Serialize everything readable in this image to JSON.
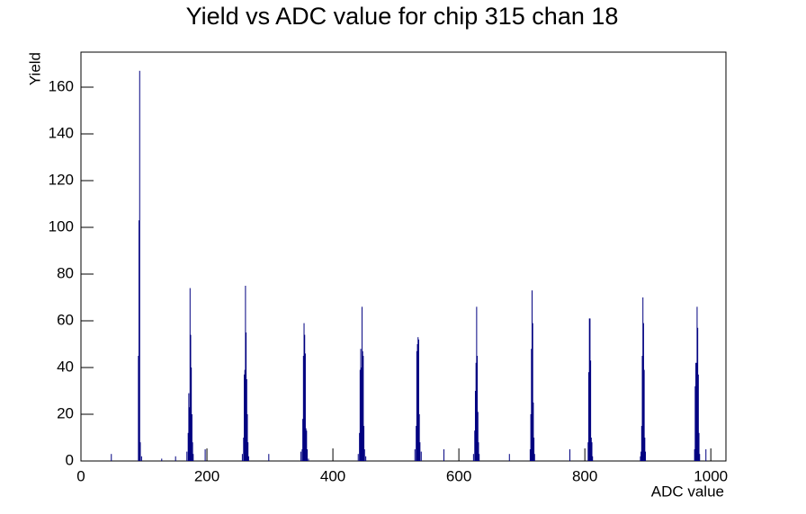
{
  "chart_data": {
    "type": "spike",
    "title": "Yield vs ADC value for chip 315 chan 18",
    "x_label": "ADC value",
    "y_label": "Yield",
    "color": "#000080",
    "xlim": [
      0,
      1024
    ],
    "ylim": [
      0,
      175
    ],
    "xticks": [
      0,
      200,
      400,
      600,
      800,
      1000
    ],
    "yticks": [
      0,
      20,
      40,
      60,
      80,
      100,
      120,
      140,
      160
    ],
    "x": [
      48,
      91,
      92,
      93,
      94,
      96,
      128,
      150,
      168,
      170,
      171,
      172,
      173,
      174,
      175,
      176,
      177,
      178,
      197,
      256,
      258,
      259,
      260,
      261,
      262,
      263,
      264,
      265,
      266,
      298,
      349,
      351,
      352,
      353,
      354,
      355,
      356,
      357,
      358,
      359,
      361,
      440,
      442,
      443,
      444,
      445,
      446,
      447,
      448,
      449,
      450,
      452,
      530,
      532,
      533,
      534,
      535,
      536,
      537,
      538,
      540,
      576,
      623,
      625,
      626,
      627,
      628,
      629,
      630,
      631,
      632,
      680,
      713,
      714,
      715,
      716,
      717,
      718,
      719,
      720,
      776,
      805,
      806,
      807,
      808,
      809,
      810,
      811,
      812,
      888,
      889,
      890,
      891,
      892,
      893,
      894,
      895,
      896,
      974,
      975,
      976,
      977,
      978,
      979,
      980,
      981,
      982,
      992
    ],
    "values": [
      3,
      45,
      103,
      167,
      8,
      2,
      1,
      2,
      4,
      12,
      29,
      23,
      74,
      54,
      40,
      20,
      8,
      3,
      5,
      3,
      10,
      37,
      39,
      75,
      55,
      35,
      20,
      8,
      2,
      3,
      4,
      5,
      18,
      45,
      59,
      54,
      46,
      14,
      13,
      5,
      1,
      3,
      12,
      39,
      48,
      40,
      66,
      47,
      45,
      15,
      5,
      2,
      5,
      15,
      47,
      50,
      53,
      52,
      20,
      8,
      4,
      5,
      3,
      13,
      30,
      42,
      66,
      45,
      21,
      8,
      3,
      3,
      5,
      20,
      48,
      73,
      59,
      25,
      10,
      3,
      5,
      8,
      38,
      61,
      61,
      43,
      10,
      8,
      2,
      2,
      4,
      15,
      45,
      70,
      59,
      39,
      10,
      4,
      5,
      32,
      42,
      42,
      66,
      57,
      37,
      12,
      3,
      5
    ]
  }
}
